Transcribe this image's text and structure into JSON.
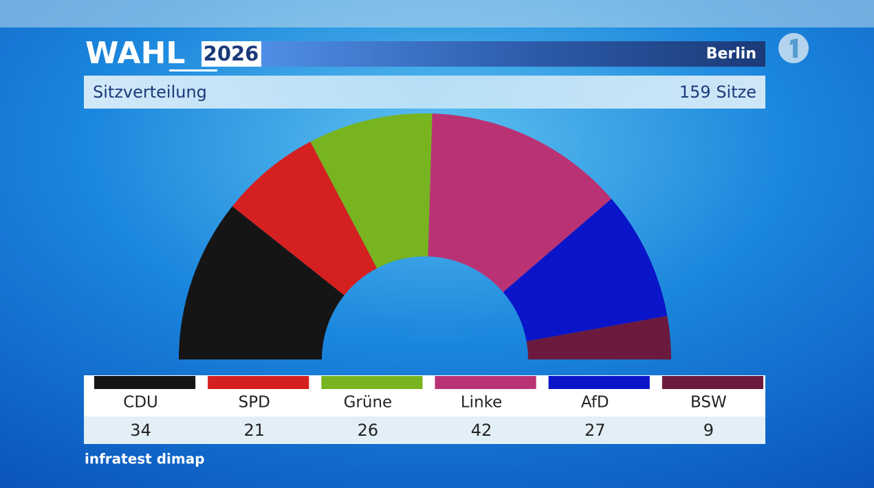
{
  "chart_data": {
    "type": "parliament",
    "title": "WAHL",
    "title_year": "2026",
    "region": "Berlin",
    "subtitle": "Sitzverteilung",
    "total_label": "159 Sitze",
    "source": "infratest dimap",
    "categories": [
      "CDU",
      "SPD",
      "Grüne",
      "Linke",
      "AfD",
      "BSW"
    ],
    "values": [
      34,
      21,
      26,
      42,
      27,
      9
    ],
    "colors": [
      "#151515",
      "#d42020",
      "#77b41f",
      "#b93374",
      "#0a14c8",
      "#6b1a3e"
    ]
  }
}
